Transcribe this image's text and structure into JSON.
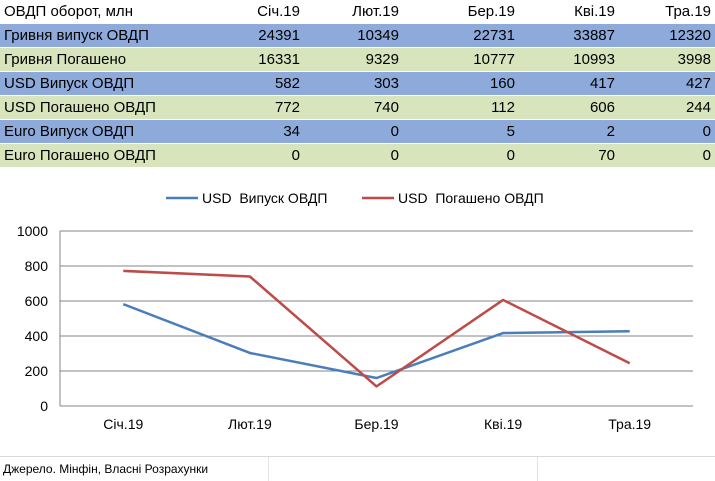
{
  "table": {
    "header": [
      "ОВДП оборот, млн",
      "Січ.19",
      "Лют.19",
      "Бер.19",
      "Кві.19",
      "Тра.19"
    ],
    "rows": [
      {
        "label": "Гривня випуск ОВДП",
        "values": [
          "24391",
          "10349",
          "22731",
          "33887",
          "12320"
        ]
      },
      {
        "label": "Гривня Погашено",
        "values": [
          "16331",
          "9329",
          "10777",
          "10993",
          "3998"
        ]
      },
      {
        "label": "USD  Випуск ОВДП",
        "values": [
          "582",
          "303",
          "160",
          "417",
          "427"
        ]
      },
      {
        "label": "USD  Погашено ОВДП",
        "values": [
          "772",
          "740",
          "112",
          "606",
          "244"
        ]
      },
      {
        "label": "Euro  Випуск ОВДП",
        "values": [
          "34",
          "0",
          "5",
          "2",
          "0"
        ]
      },
      {
        "label": "Euro  Погашено ОВДП",
        "values": [
          "0",
          "0",
          "0",
          "70",
          "0"
        ]
      }
    ]
  },
  "chart_data": {
    "type": "line",
    "categories": [
      "Січ.19",
      "Лют.19",
      "Бер.19",
      "Кві.19",
      "Тра.19"
    ],
    "series": [
      {
        "name": "USD  Випуск ОВДП",
        "values": [
          582,
          303,
          160,
          417,
          427
        ],
        "color": "#4a7ebb"
      },
      {
        "name": "USD  Погашено ОВДП",
        "values": [
          772,
          740,
          112,
          606,
          244
        ],
        "color": "#be4b48"
      }
    ],
    "ylim": [
      0,
      1000
    ],
    "yticks": [
      0,
      200,
      400,
      600,
      800,
      1000
    ],
    "grid": true,
    "legend": "top-center"
  },
  "colors": {
    "row_blue": "#8eaadb",
    "row_green": "#d8e4bc",
    "gridline": "#868686"
  },
  "source": "Джерело. Мінфін, Власні Розрахунки"
}
